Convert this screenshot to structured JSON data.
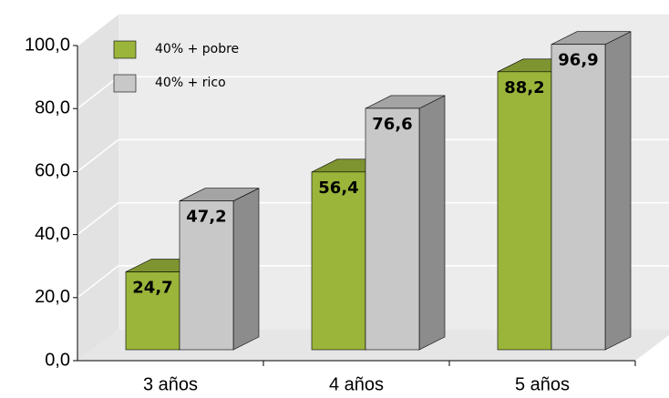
{
  "chart_data": {
    "type": "bar3d",
    "categories": [
      "3 años",
      "4 años",
      "5 años"
    ],
    "series": [
      {
        "name": "40% + pobre",
        "color": "#9ab53a",
        "values": [
          24.7,
          56.4,
          88.2
        ],
        "value_labels": [
          "24,7",
          "56,4",
          "88,2"
        ]
      },
      {
        "name": "40% + rico",
        "color": "#c8c8c8",
        "values": [
          47.2,
          76.6,
          96.9
        ],
        "value_labels": [
          "47,2",
          "76,6",
          "96,9"
        ]
      }
    ],
    "ylim": [
      0,
      100
    ],
    "yticks": [
      {
        "value": 0,
        "label": "0,0"
      },
      {
        "value": 20,
        "label": "20,0"
      },
      {
        "value": 40,
        "label": "40,0"
      },
      {
        "value": 60,
        "label": "60,0"
      },
      {
        "value": 80,
        "label": "80,0"
      },
      {
        "value": 100,
        "label": "100,0"
      }
    ],
    "grid": true
  }
}
